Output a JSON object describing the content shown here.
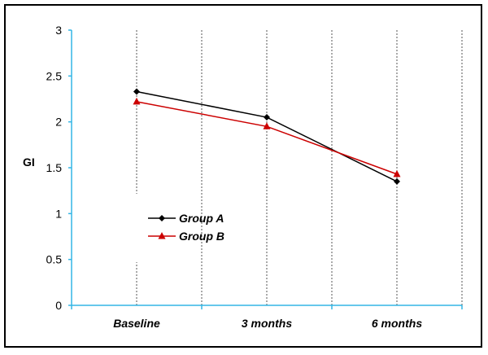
{
  "chart_data": {
    "type": "line",
    "categories": [
      "Baseline",
      "3 months",
      "6 months"
    ],
    "series": [
      {
        "name": "Group A",
        "values": [
          2.33,
          2.05,
          1.35
        ],
        "color": "#000000",
        "marker": "diamond"
      },
      {
        "name": "Group B",
        "values": [
          2.22,
          1.95,
          1.43
        ],
        "color": "#cc0000",
        "marker": "triangle"
      }
    ],
    "title": "",
    "xlabel": "",
    "ylabel": "GI",
    "ylim": [
      0,
      3
    ],
    "yticks": [
      "0",
      "0.5",
      "1",
      "1.5",
      "2",
      "2.5",
      "3"
    ],
    "grid": "vertical dotted",
    "axis_color": "#33b5e5",
    "legend_position": "center-left"
  }
}
